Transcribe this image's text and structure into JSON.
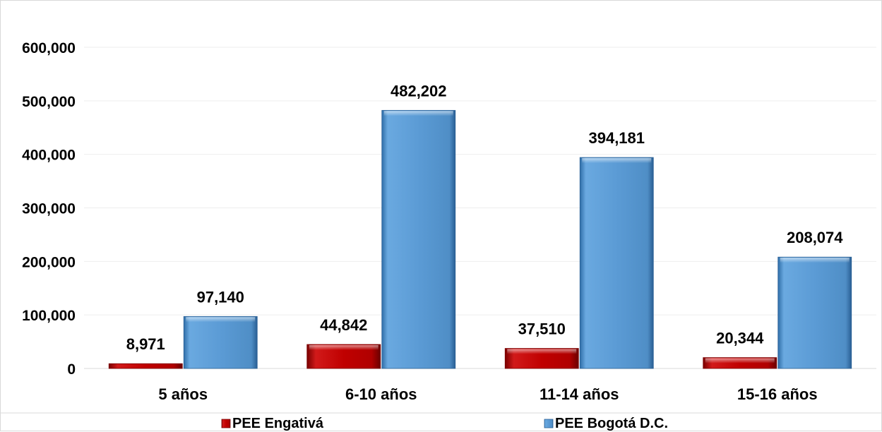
{
  "chart_data": {
    "type": "bar",
    "categories": [
      "5 años",
      "6-10 años",
      "11-14 años",
      "15-16 años"
    ],
    "series": [
      {
        "name": "PEE Engativá",
        "values": [
          8971,
          44842,
          37510,
          20344
        ],
        "labels": [
          "8,971",
          "44,842",
          "37,510",
          "20,344"
        ],
        "color": "#c00000"
      },
      {
        "name": "PEE Bogotá D.C.",
        "values": [
          97140,
          482202,
          394181,
          208074
        ],
        "labels": [
          "97,140",
          "482,202",
          "394,181",
          "208,074"
        ],
        "color": "#5b9bd5"
      }
    ],
    "y_ticks": [
      {
        "value": 0,
        "label": "0"
      },
      {
        "value": 100000,
        "label": "100,000"
      },
      {
        "value": 200000,
        "label": "200,000"
      },
      {
        "value": 300000,
        "label": "300,000"
      },
      {
        "value": 400000,
        "label": "400,000"
      },
      {
        "value": 500000,
        "label": "500,000"
      },
      {
        "value": 600000,
        "label": "600,000"
      }
    ],
    "ylim": [
      0,
      600000
    ],
    "grid": true,
    "legend_position": "bottom",
    "title": "",
    "xlabel": "",
    "ylabel": ""
  }
}
